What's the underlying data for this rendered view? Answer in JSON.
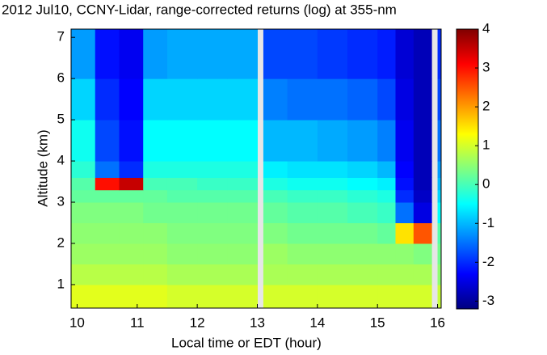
{
  "chart_data": {
    "type": "heatmap",
    "title": "2012 Jul10, CCNY-Lidar, range-corrected returns (log) at 355-nm",
    "x_label": "Local time or EDT (hour)",
    "y_label": "Altitude (km)",
    "x_edges": [
      9.9,
      10.3,
      10.7,
      11.1,
      11.5,
      12,
      12.5,
      13,
      13.1,
      13.5,
      14,
      14.5,
      15,
      15.3,
      15.6,
      15.9,
      16.0,
      16.06
    ],
    "y_edges": [
      0.43,
      1,
      1.5,
      2,
      2.5,
      3,
      3.3,
      3.6,
      4,
      5,
      6,
      7.2
    ],
    "z": [
      [
        1.1,
        1.1,
        1.1,
        1.1,
        1.0,
        1.0,
        1.0,
        null,
        1.0,
        1.0,
        1.0,
        1.0,
        1.0,
        1.0,
        1.0,
        null,
        0.9
      ],
      [
        0.8,
        0.8,
        0.8,
        0.8,
        0.7,
        0.7,
        0.7,
        null,
        0.7,
        0.7,
        0.7,
        0.7,
        0.7,
        0.7,
        0.7,
        null,
        0.5
      ],
      [
        0.6,
        0.6,
        0.6,
        0.6,
        0.5,
        0.5,
        0.5,
        null,
        0.6,
        0.5,
        0.5,
        0.5,
        0.5,
        0.5,
        0.4,
        null,
        0.3
      ],
      [
        0.5,
        0.5,
        0.5,
        0.5,
        0.4,
        0.4,
        0.4,
        null,
        0.4,
        0.3,
        0.3,
        0.3,
        0.2,
        1.5,
        2.5,
        null,
        0.1
      ],
      [
        0.4,
        0.4,
        0.4,
        0.3,
        0.3,
        0.3,
        0.3,
        null,
        0.2,
        0.1,
        0.1,
        0,
        -0.1,
        -1.5,
        -2.5,
        null,
        -0.5
      ],
      [
        0.2,
        0.2,
        0.2,
        0.2,
        0.1,
        0.1,
        0.1,
        null,
        0,
        -0.1,
        -0.1,
        -0.2,
        -0.3,
        -2,
        -2.7,
        null,
        -0.8
      ],
      [
        0.1,
        3.0,
        3.5,
        0,
        0,
        -0.1,
        -0.1,
        null,
        -0.3,
        -0.4,
        -0.4,
        -0.5,
        -0.6,
        -2.2,
        -2.8,
        null,
        -1
      ],
      [
        -0.2,
        -1.5,
        -2,
        -0.3,
        -0.3,
        -0.3,
        -0.3,
        null,
        -0.6,
        -0.7,
        -0.7,
        -0.8,
        -1,
        -2.3,
        -2.8,
        null,
        -1.2
      ],
      [
        -0.4,
        -1.8,
        -2.2,
        -0.5,
        -0.5,
        -0.5,
        -0.5,
        null,
        -1,
        -1,
        -1.1,
        -1.2,
        -1.4,
        -2.4,
        -2.8,
        null,
        -1.5
      ],
      [
        -0.8,
        -2,
        -2.3,
        -0.8,
        -0.8,
        -0.8,
        -0.8,
        null,
        -1.4,
        -1.5,
        -1.5,
        -1.6,
        -1.8,
        -2.5,
        -2.8,
        null,
        -1.8
      ],
      [
        -1.2,
        -2.2,
        -2.4,
        -1.2,
        -1.1,
        -1.1,
        -1.1,
        null,
        -1.8,
        -1.8,
        -1.9,
        -2,
        -2.1,
        -2.6,
        -2.8,
        null,
        -2
      ]
    ],
    "xlim": [
      9.9,
      16.06
    ],
    "xticks": [
      10,
      11,
      12,
      13,
      14,
      15,
      16
    ],
    "ylim": [
      0.43,
      7.2
    ],
    "yticks": [
      1,
      2,
      3,
      4,
      5,
      6,
      7
    ],
    "clim": [
      -3.2,
      4
    ],
    "colorbar_ticks": [
      -3,
      -2,
      -1,
      0,
      1,
      2,
      3,
      4
    ],
    "colormap": "jet"
  }
}
